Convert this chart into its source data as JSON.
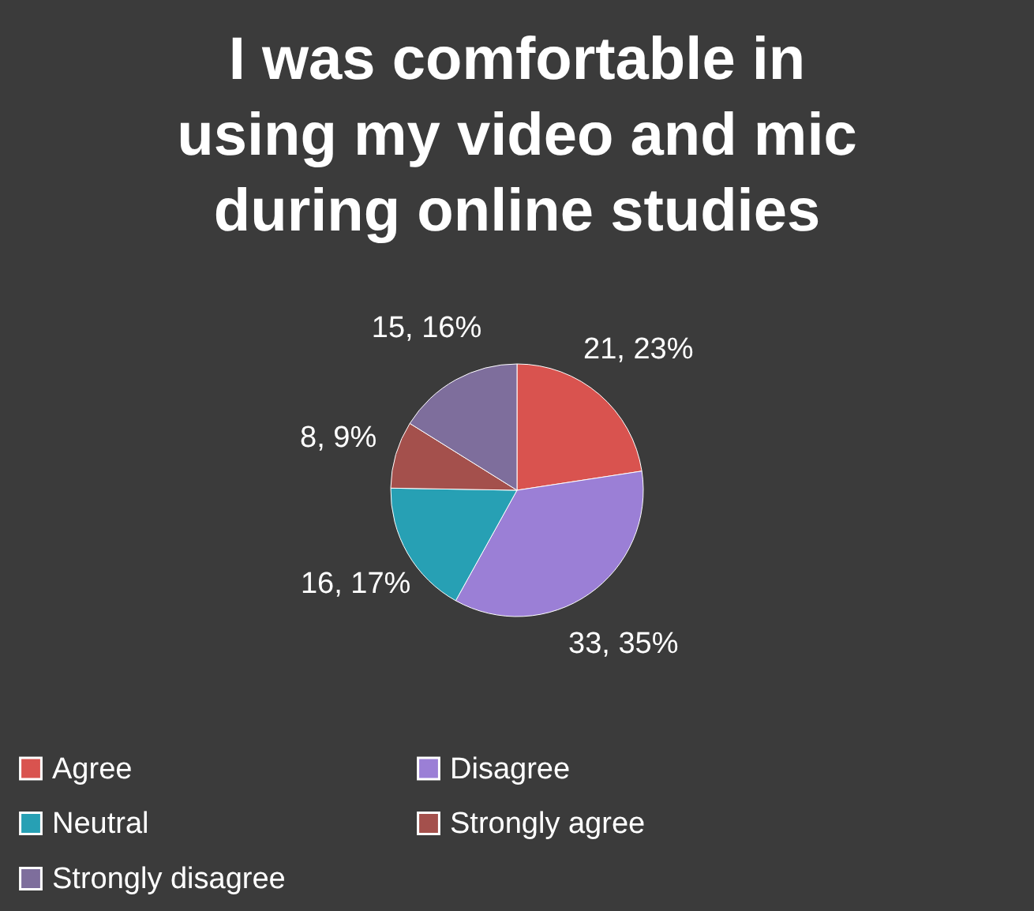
{
  "chart_data": {
    "type": "pie",
    "title": "I was comfortable in using my video and mic during online studies",
    "categories": [
      "Agree",
      "Disagree",
      "Neutral",
      "Strongly agree",
      "Strongly disagree"
    ],
    "values": [
      21,
      33,
      16,
      8,
      15
    ],
    "colors": [
      "#d9534f",
      "#9b7fd6",
      "#27a0b4",
      "#a4504c",
      "#7e6e9c"
    ],
    "value_labels": [
      "21, 23%",
      "33, 35%",
      "16, 17%",
      "8, 9%",
      "15, 16%"
    ],
    "legend": "bottom"
  }
}
